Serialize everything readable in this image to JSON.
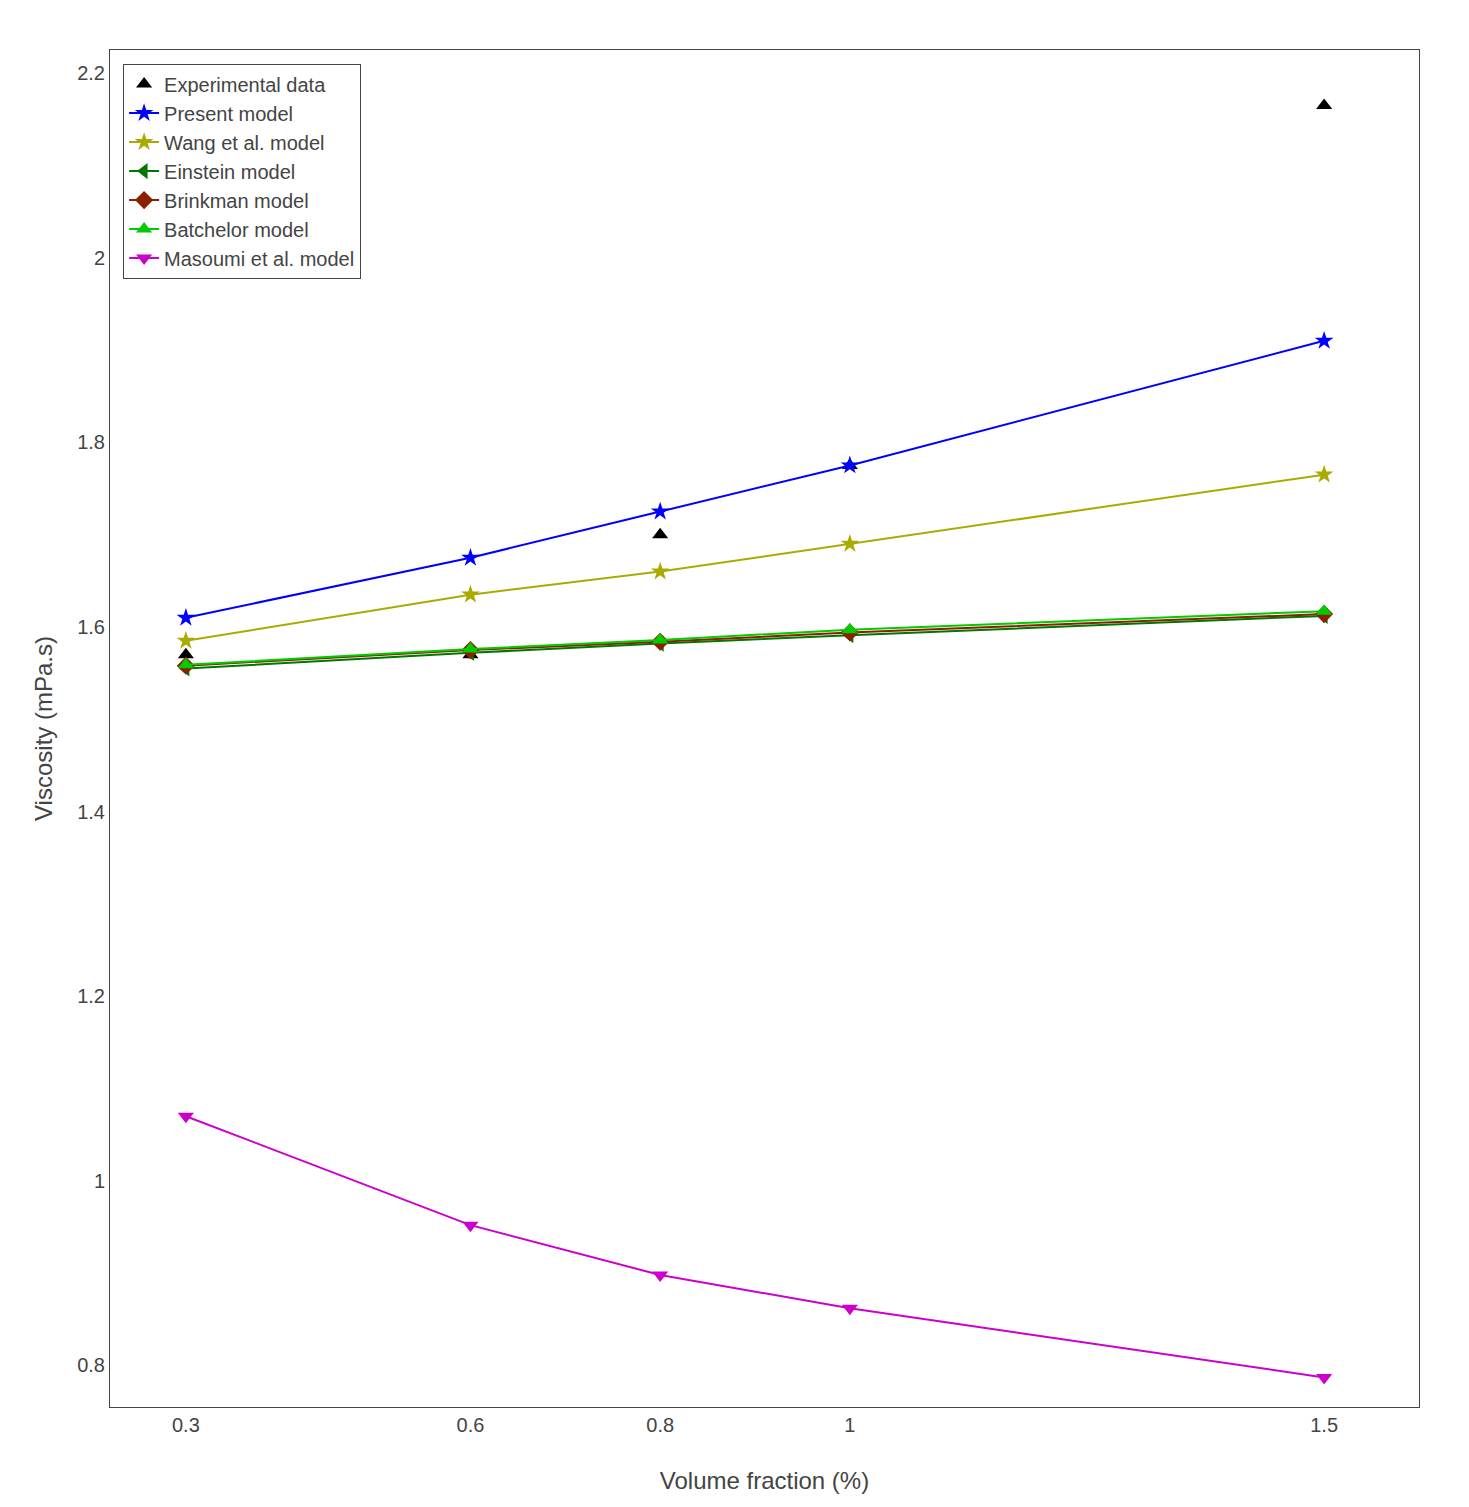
{
  "chart_data": {
    "type": "line",
    "x": [
      0.3,
      0.6,
      0.8,
      1.0,
      1.5
    ],
    "series": [
      {
        "name": "Experimental data",
        "color": "#000000",
        "marker": "triangle-up",
        "line_style": "none",
        "values": [
          1.57,
          1.57,
          1.7,
          1.775,
          2.165
        ]
      },
      {
        "name": "Present model",
        "color": "#0000FF",
        "marker": "star",
        "line_style": "solid",
        "values": [
          1.61,
          1.675,
          1.725,
          1.775,
          1.91
        ]
      },
      {
        "name": "Wang et al. model",
        "color": "#AAAA00",
        "marker": "star",
        "line_style": "solid",
        "values": [
          1.585,
          1.635,
          1.66,
          1.69,
          1.765
        ]
      },
      {
        "name": "Einstein model",
        "color": "#007700",
        "marker": "triangle-left",
        "line_style": "solid",
        "values": [
          1.555,
          1.572,
          1.582,
          1.591,
          1.612
        ]
      },
      {
        "name": "Brinkman model",
        "color": "#8B2000",
        "marker": "diamond",
        "line_style": "solid",
        "values": [
          1.558,
          1.575,
          1.584,
          1.594,
          1.614
        ]
      },
      {
        "name": "Batchelor model",
        "color": "#00CC00",
        "marker": "triangle-up",
        "line_style": "solid",
        "values": [
          1.559,
          1.576,
          1.586,
          1.597,
          1.617
        ]
      },
      {
        "name": "Masoumi et al. model",
        "color": "#CC00CC",
        "marker": "triangle-down",
        "line_style": "solid",
        "values": [
          1.07,
          0.952,
          0.898,
          0.862,
          0.787
        ]
      }
    ],
    "x_label": "Volume fraction (%)",
    "y_label": "Viscosity (mPa.s)",
    "xlim": [
      0.22,
      1.6
    ],
    "ylim": [
      0.755,
      2.225
    ],
    "xticks": [
      0.3,
      0.6,
      0.8,
      1,
      1.5
    ],
    "yticks": [
      0.8,
      1,
      1.2,
      1.4,
      1.6,
      1.8,
      2,
      2.2
    ],
    "legend": "upper left",
    "grid": false
  }
}
